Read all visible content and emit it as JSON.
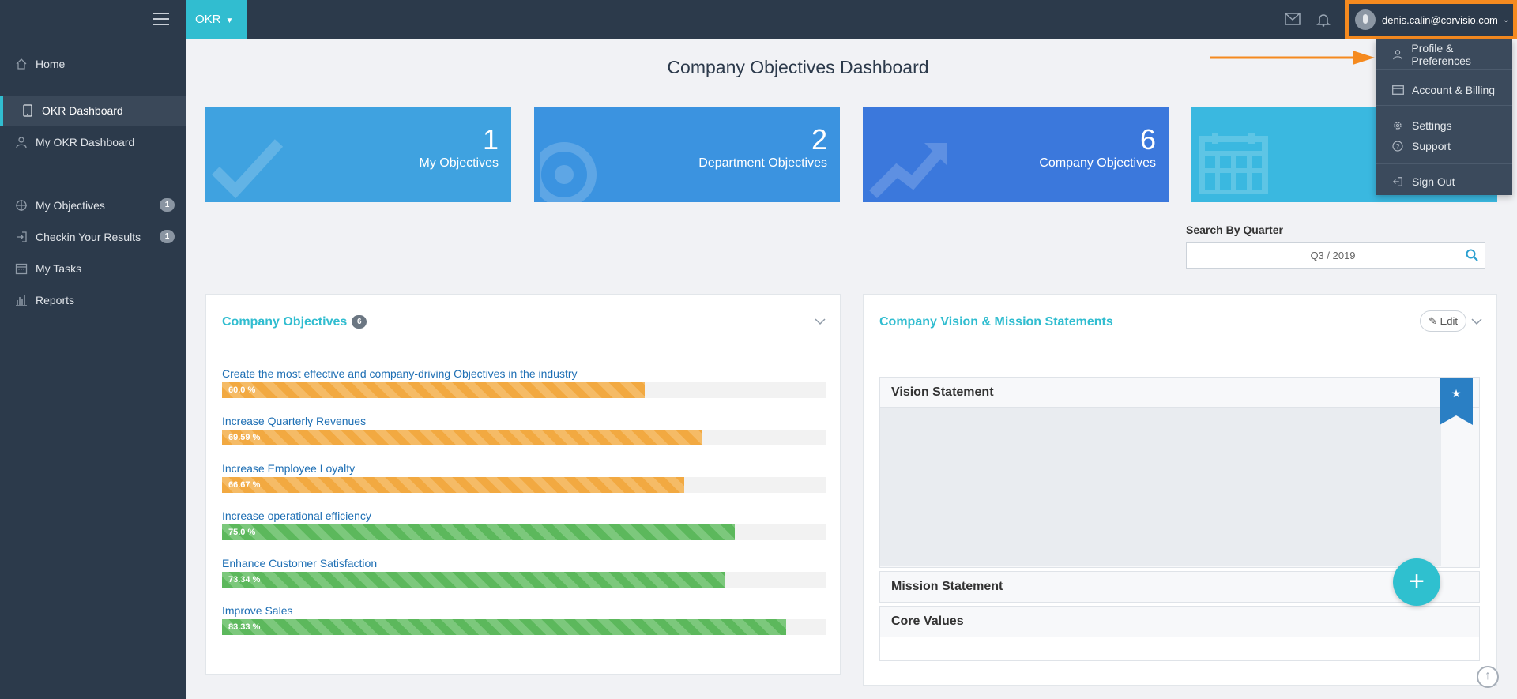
{
  "app": {
    "switcher_label": "OKR"
  },
  "user": {
    "email": "denis.calin@corvisio.com"
  },
  "dropdown": [
    {
      "label": "Profile & Preferences",
      "icon": "user-icon"
    },
    {
      "label": "Account & Billing",
      "icon": "credit-card-icon"
    },
    {
      "label": "Settings",
      "icon": "gear-icon"
    },
    {
      "label": "Support",
      "icon": "help-icon"
    },
    {
      "label": "Sign Out",
      "icon": "sign-out-icon"
    }
  ],
  "sidebar": {
    "items": [
      {
        "label": "Home",
        "icon": "home-icon"
      },
      {
        "label": "OKR Dashboard",
        "icon": "tablet-icon",
        "active": true
      },
      {
        "label": "My OKR Dashboard",
        "icon": "user-icon"
      },
      {
        "label": "My Objectives",
        "icon": "crosshair-icon",
        "badge": "1"
      },
      {
        "label": "Checkin Your Results",
        "icon": "sign-in-icon",
        "badge": "1"
      },
      {
        "label": "My Tasks",
        "icon": "calendar-icon"
      },
      {
        "label": "Reports",
        "icon": "bar-chart-icon"
      }
    ]
  },
  "page": {
    "title": "Company Objectives Dashboard"
  },
  "tiles": [
    {
      "number": "1",
      "label": "My Objectives",
      "color": "#3fa2e0"
    },
    {
      "number": "2",
      "label": "Department Objectives",
      "color": "#3b93e0"
    },
    {
      "number": "6",
      "label": "Company Objectives",
      "color": "#3b78dc"
    },
    {
      "number": "",
      "label": "",
      "color": "#3ab8e0"
    }
  ],
  "search": {
    "label": "Search By Quarter",
    "value": "Q3 / 2019"
  },
  "objectives_panel": {
    "title": "Company Objectives",
    "count": "6",
    "items": [
      {
        "name": "Create the most effective and company-driving Objectives in the industry",
        "percent_label": "60.0 %",
        "progress": 0.7,
        "color": "orange"
      },
      {
        "name": "Increase Quarterly Revenues",
        "percent_label": "69.59 %",
        "progress": 0.795,
        "color": "orange"
      },
      {
        "name": "Increase Employee Loyalty",
        "percent_label": "66.67 %",
        "progress": 0.766,
        "color": "orange"
      },
      {
        "name": "Increase operational efficiency",
        "percent_label": "75.0 %",
        "progress": 0.85,
        "color": "green"
      },
      {
        "name": "Enhance Customer Satisfaction",
        "percent_label": "73.34 %",
        "progress": 0.832,
        "color": "green"
      },
      {
        "name": "Improve Sales",
        "percent_label": "83.33 %",
        "progress": 0.934,
        "color": "green"
      }
    ]
  },
  "vision_panel": {
    "title": "Company Vision & Mission Statements",
    "edit_label": "Edit",
    "sections": [
      "Vision Statement",
      "Mission Statement",
      "Core Values"
    ]
  },
  "fab": {
    "label": "+"
  }
}
